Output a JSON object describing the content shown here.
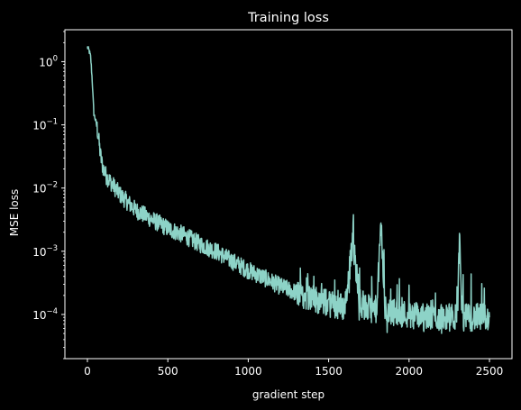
{
  "chart_data": {
    "type": "line",
    "title": "Training loss",
    "xlabel": "gradient step",
    "ylabel": "MSE loss",
    "xlim": [
      -140,
      2640
    ],
    "ylim": [
      2e-05,
      3.2
    ],
    "yscale": "log",
    "grid": false,
    "background_color": "#000000",
    "foreground_color": "#ffffff",
    "x_ticks": [
      {
        "value": 0,
        "label": "0"
      },
      {
        "value": 500,
        "label": "500"
      },
      {
        "value": 1000,
        "label": "1000"
      },
      {
        "value": 1500,
        "label": "1500"
      },
      {
        "value": 2000,
        "label": "2000"
      },
      {
        "value": 2500,
        "label": "2500"
      }
    ],
    "y_ticks": [
      {
        "value": 1,
        "base": "10",
        "exp": "0"
      },
      {
        "value": 0.1,
        "base": "10",
        "exp": "−1"
      },
      {
        "value": 0.01,
        "base": "10",
        "exp": "−2"
      },
      {
        "value": 0.001,
        "base": "10",
        "exp": "−3"
      },
      {
        "value": 0.0001,
        "base": "10",
        "exp": "−4"
      }
    ],
    "series": [
      {
        "color": "#8dd3c7",
        "x": [
          0,
          10,
          20,
          30,
          40,
          50,
          60,
          70,
          80,
          90,
          100,
          120,
          150,
          200,
          250,
          300,
          400,
          500,
          600,
          700,
          800,
          900,
          1000,
          1100,
          1200,
          1300,
          1400,
          1500,
          1600,
          1650,
          1700,
          1800,
          1825,
          1850,
          1900,
          2000,
          2100,
          2200,
          2300,
          2315,
          2330,
          2400,
          2500
        ],
        "y": [
          1.7,
          1.5,
          1.2,
          0.5,
          0.15,
          0.12,
          0.09,
          0.06,
          0.035,
          0.025,
          0.02,
          0.015,
          0.012,
          0.008,
          0.006,
          0.0045,
          0.0032,
          0.0023,
          0.0018,
          0.0013,
          0.001,
          0.0007,
          0.0005,
          0.00038,
          0.00028,
          0.00022,
          0.00018,
          0.00015,
          0.00013,
          0.0014,
          0.00013,
          0.00012,
          0.0028,
          0.00012,
          0.00011,
          0.0001,
          9e-05,
          9e-05,
          9e-05,
          0.0018,
          9e-05,
          9e-05,
          9e-05
        ]
      }
    ]
  }
}
